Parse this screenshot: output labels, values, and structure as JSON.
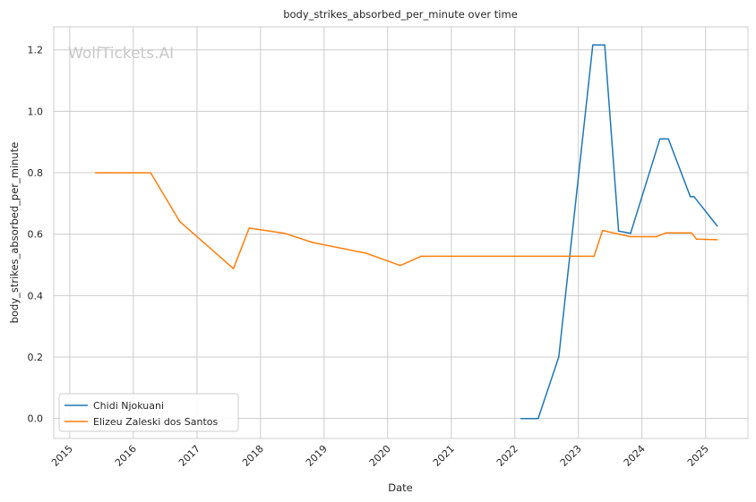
{
  "chart_data": {
    "type": "line",
    "title": "body_strikes_absorbed_per_minute over time",
    "xlabel": "Date",
    "ylabel": "body_strikes_absorbed_per_minute",
    "watermark": "WolfTickets.AI",
    "xlim": [
      "2014-10-01",
      "2025-09-01"
    ],
    "ylim": [
      -0.065,
      1.275
    ],
    "x_ticks": [
      "2015",
      "2016",
      "2017",
      "2018",
      "2019",
      "2020",
      "2021",
      "2022",
      "2023",
      "2024",
      "2025"
    ],
    "y_ticks": [
      "0.0",
      "0.2",
      "0.4",
      "0.6",
      "0.8",
      "1.0",
      "1.2"
    ],
    "y_tick_values": [
      0,
      0.2,
      0.4,
      0.6,
      0.8,
      1.0,
      1.2
    ],
    "grid": true,
    "legend_position": "lower-left",
    "series": [
      {
        "name": "Chidi Njokuani",
        "color": "#1f77b4",
        "points": [
          [
            "2022-02-05",
            0.0
          ],
          [
            "2022-05-15",
            0.0
          ],
          [
            "2022-09-10",
            0.2
          ],
          [
            "2023-03-25",
            1.216
          ],
          [
            "2023-06-01",
            1.216
          ],
          [
            "2023-08-20",
            0.61
          ],
          [
            "2023-10-28",
            0.603
          ],
          [
            "2024-04-13",
            0.91
          ],
          [
            "2024-06-01",
            0.91
          ],
          [
            "2024-10-05",
            0.722
          ],
          [
            "2024-10-26",
            0.722
          ],
          [
            "2025-03-08",
            0.627
          ]
        ]
      },
      {
        "name": "Elizeu Zaleski dos Santos",
        "color": "#ff7f0e",
        "points": [
          [
            "2015-05-30",
            0.8
          ],
          [
            "2016-04-10",
            0.8
          ],
          [
            "2016-09-24",
            0.641
          ],
          [
            "2017-07-29",
            0.488
          ],
          [
            "2017-10-28",
            0.62
          ],
          [
            "2018-05-19",
            0.603
          ],
          [
            "2018-10-27",
            0.573
          ],
          [
            "2019-08-31",
            0.538
          ],
          [
            "2020-03-14",
            0.498
          ],
          [
            "2020-07-11",
            0.528
          ],
          [
            "2023-04-01",
            0.528
          ],
          [
            "2023-05-20",
            0.612
          ],
          [
            "2023-10-28",
            0.592
          ],
          [
            "2024-03-23",
            0.592
          ],
          [
            "2024-05-18",
            0.604
          ],
          [
            "2024-10-12",
            0.604
          ],
          [
            "2024-11-09",
            0.584
          ],
          [
            "2025-03-08",
            0.582
          ]
        ]
      }
    ]
  }
}
